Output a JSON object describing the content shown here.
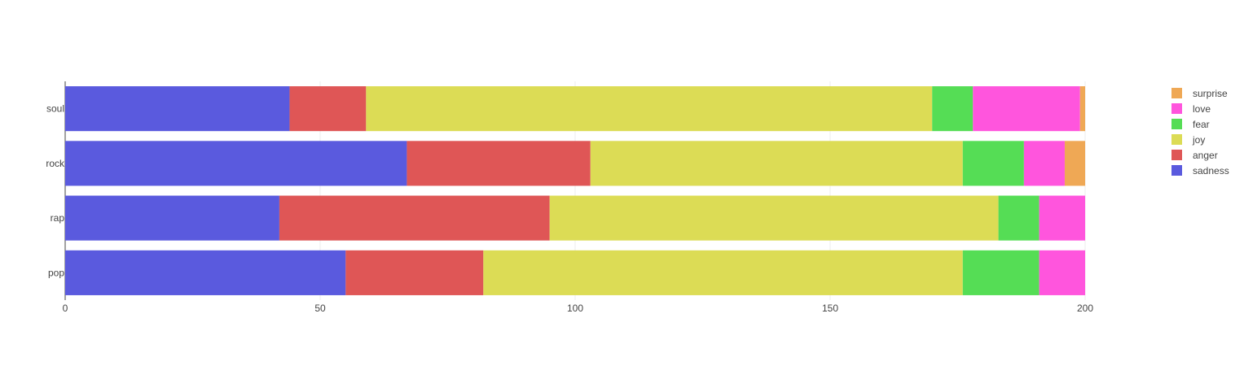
{
  "chart_data": {
    "type": "bar",
    "orientation": "horizontal",
    "barmode": "stack",
    "categories": [
      "pop",
      "rap",
      "rock",
      "soul"
    ],
    "series": [
      {
        "name": "sadness",
        "color": "#5a5ade",
        "values": [
          55,
          42,
          67,
          44
        ]
      },
      {
        "name": "anger",
        "color": "#df5656",
        "values": [
          27,
          53,
          36,
          15
        ]
      },
      {
        "name": "joy",
        "color": "#dcdc55",
        "values": [
          94,
          88,
          73,
          111
        ]
      },
      {
        "name": "fear",
        "color": "#55dd55",
        "values": [
          15,
          8,
          12,
          8
        ]
      },
      {
        "name": "love",
        "color": "#ff55dd",
        "values": [
          9,
          9,
          8,
          21
        ]
      },
      {
        "name": "surprise",
        "color": "#efa855",
        "values": [
          0,
          0,
          4,
          1
        ]
      }
    ],
    "xlim": [
      0,
      200
    ],
    "xticks": [
      "0",
      "50",
      "100",
      "150",
      "200"
    ],
    "xtick_values": [
      0,
      50,
      100,
      150,
      200
    ],
    "grid": true,
    "legend_position": "top-right",
    "title": "",
    "xlabel": "",
    "ylabel": ""
  }
}
